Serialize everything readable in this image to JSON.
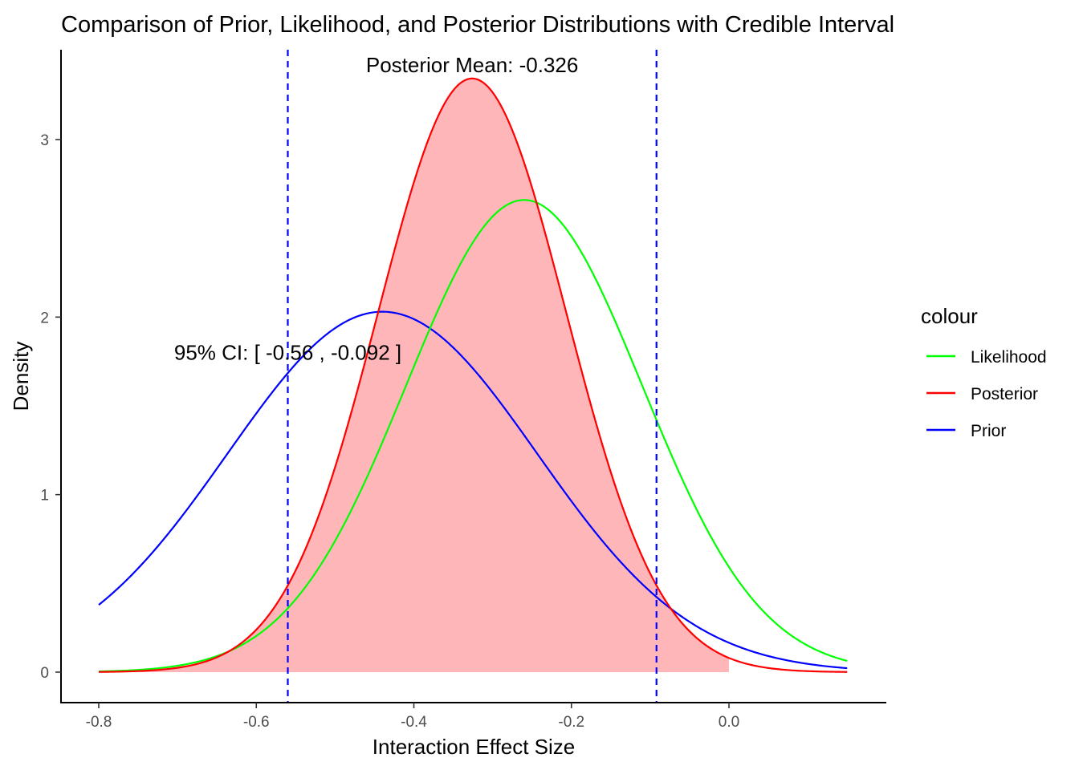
{
  "chart_data": {
    "type": "line",
    "title": "Comparison of Prior, Likelihood, and Posterior Distributions with Credible Interval",
    "xlabel": "Interaction Effect Size",
    "ylabel": "Density",
    "xlim": [
      -0.85,
      0.2
    ],
    "ylim": [
      -0.16,
      3.5
    ],
    "x_ticks": [
      -0.8,
      -0.6,
      -0.4,
      -0.2,
      0.0
    ],
    "x_tick_labels": [
      "-0.8",
      "-0.6",
      "-0.4",
      "-0.2",
      "0.0"
    ],
    "y_ticks": [
      0,
      1,
      2,
      3
    ],
    "y_tick_labels": [
      "0",
      "1",
      "2",
      "3"
    ],
    "grid": false,
    "x_range": [
      -0.8,
      0.15
    ],
    "series": [
      {
        "name": "Likelihood",
        "color": "#00ff00",
        "mean": -0.26,
        "sd": 0.15
      },
      {
        "name": "Posterior",
        "color": "#ff0000",
        "mean": -0.326,
        "sd": 0.1193
      },
      {
        "name": "Prior",
        "color": "#0000ff",
        "mean": -0.44,
        "sd": 0.1965
      }
    ],
    "shaded_region": {
      "series": "Posterior",
      "x_from": -0.8,
      "x_to": 0.0,
      "color": "#ffb6b9"
    },
    "credible_interval": {
      "lower": -0.56,
      "upper": -0.092,
      "color": "#0000ff"
    },
    "annotations": [
      {
        "text": "Posterior Mean: -0.326",
        "x": -0.326,
        "y": 3.42
      },
      {
        "text": "95% CI: [ -0.56 , -0.092 ]",
        "x": -0.56,
        "y": 1.8
      }
    ],
    "legend": {
      "title": "colour",
      "position": "right",
      "items": [
        {
          "label": "Likelihood",
          "color": "#00ff00"
        },
        {
          "label": "Posterior",
          "color": "#ff0000"
        },
        {
          "label": "Prior",
          "color": "#0000ff"
        }
      ]
    }
  }
}
